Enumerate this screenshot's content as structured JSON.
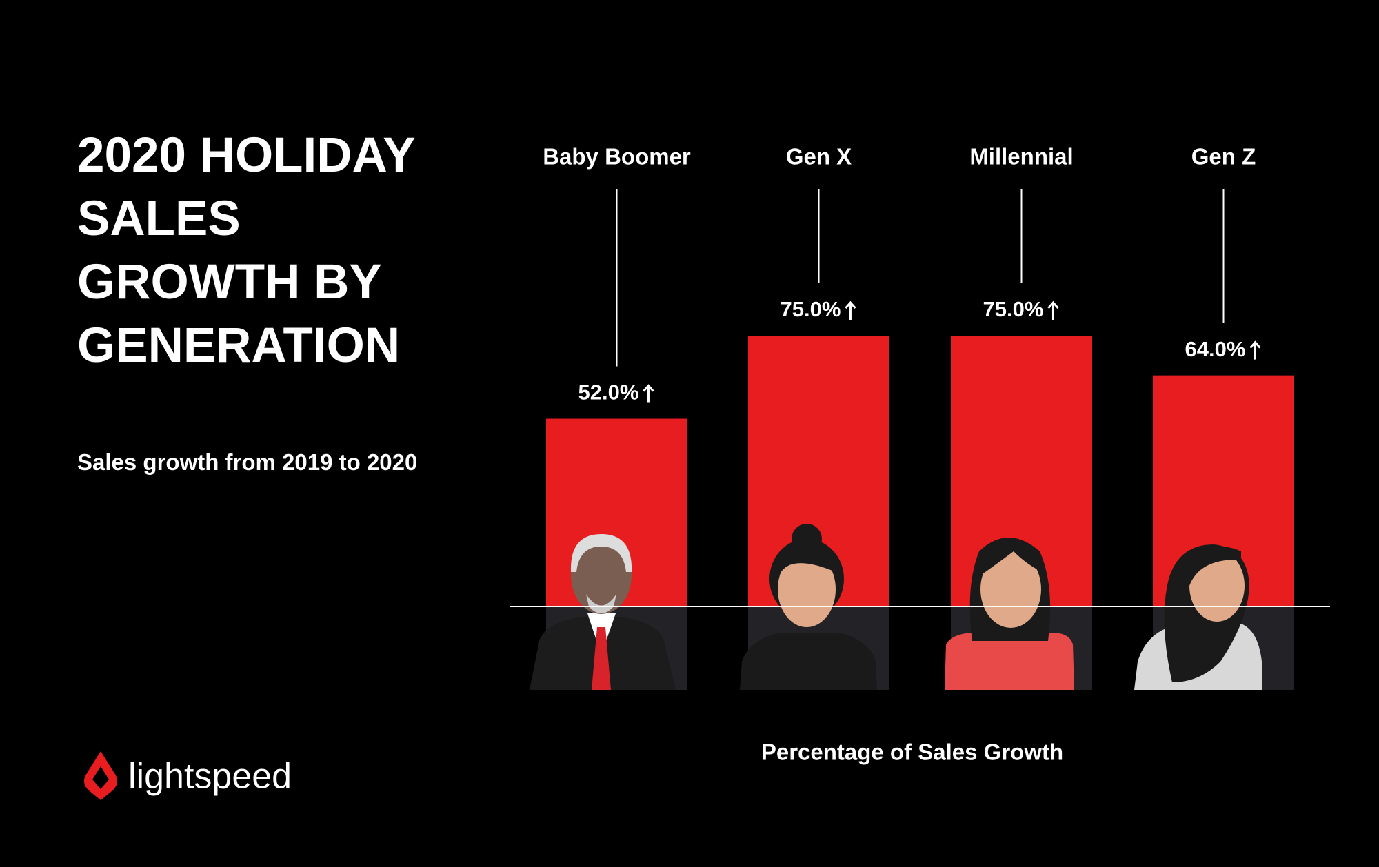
{
  "chart_data": {
    "type": "bar",
    "title": "2020 HOLIDAY SALES GROWTH BY GENERATION",
    "subtitle": "Sales growth from 2019 to 2020",
    "x_label": "Percentage of Sales Growth",
    "categories": [
      "Baby Boomer",
      "Gen X",
      "Millennial",
      "Gen Z"
    ],
    "values": [
      52,
      75,
      75,
      64
    ],
    "value_labels": [
      "52.0%",
      "75.0%",
      "75.0%",
      "64.0%"
    ],
    "color": "#e81d1f",
    "ylim": [
      0,
      100
    ]
  },
  "logo": "lightspeed"
}
